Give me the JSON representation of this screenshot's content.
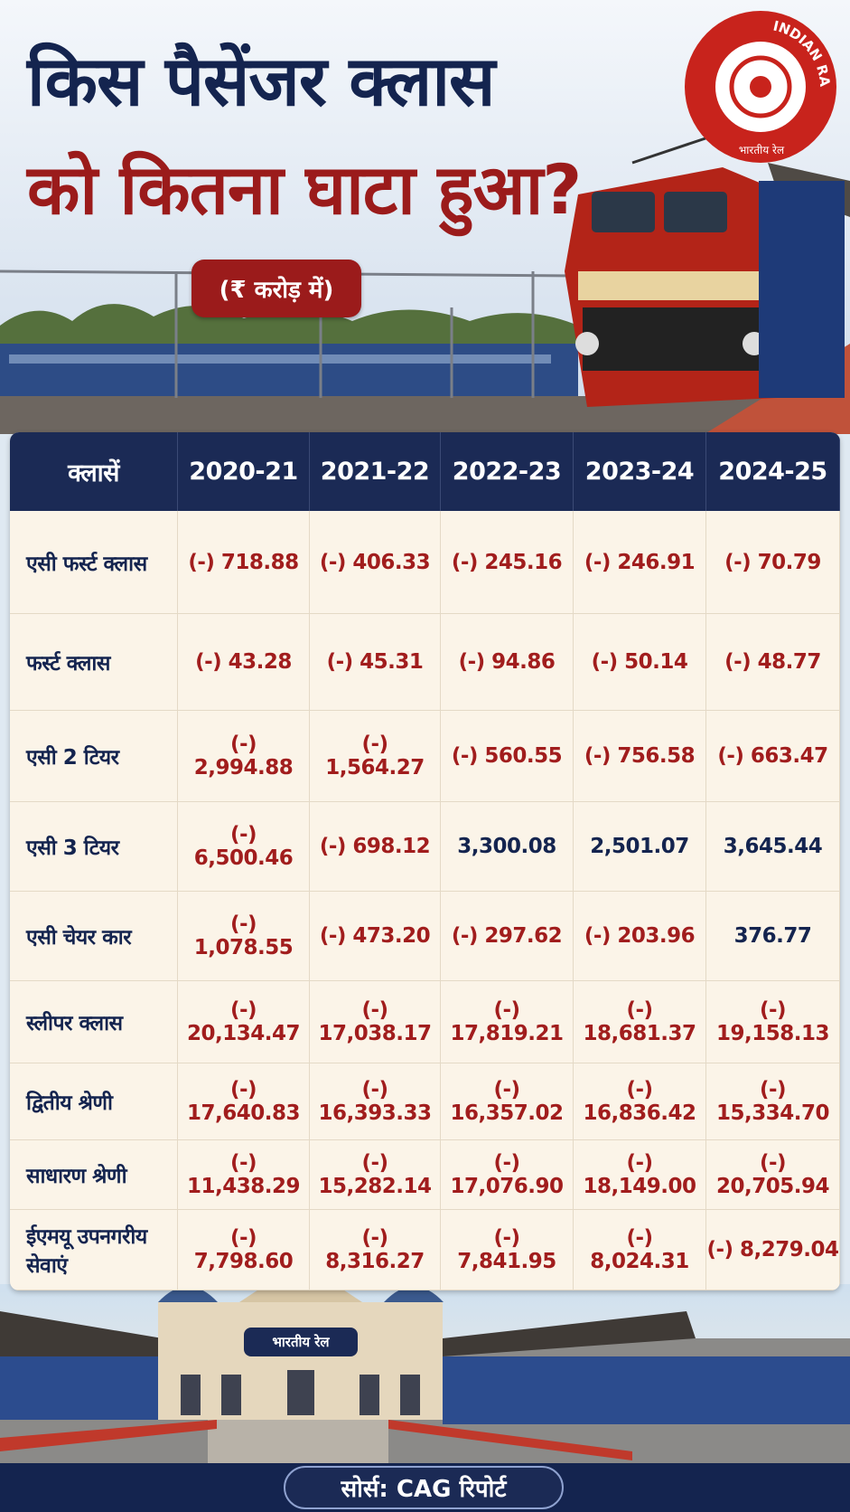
{
  "header": {
    "title_line1": "किस पैसेंजर क्लास",
    "title_line2": "को कितना घाटा हुआ?",
    "unit": "(₹ करोड़ में)"
  },
  "logo": {
    "text_en": "INDIAN RAILWAYS",
    "text_hi": "भारतीय रेल"
  },
  "station_sign": "भारतीय रेल",
  "table": {
    "columns": [
      "क्लासें",
      "2020-21",
      "2021-22",
      "2022-23",
      "2023-24",
      "2024-25"
    ],
    "rows": [
      [
        "एसी फर्स्ट क्लास",
        "(-) 718.88",
        "(-) 406.33",
        "(-) 245.16",
        "(-) 246.91",
        "(-) 70.79"
      ],
      [
        "फर्स्ट क्लास",
        "(-) 43.28",
        "(-) 45.31",
        "(-) 94.86",
        "(-) 50.14",
        "(-) 48.77"
      ],
      [
        "एसी 2 टियर",
        "(-) 2,994.88",
        "(-) 1,564.27",
        "(-) 560.55",
        "(-) 756.58",
        "(-) 663.47"
      ],
      [
        "एसी 3 टियर",
        "(-) 6,500.46",
        "(-) 698.12",
        "3,300.08",
        "2,501.07",
        "3,645.44"
      ],
      [
        "एसी चेयर कार",
        "(-) 1,078.55",
        "(-) 473.20",
        "(-) 297.62",
        "(-) 203.96",
        "376.77"
      ],
      [
        "स्लीपर क्लास",
        "(-) 20,134.47",
        "(-) 17,038.17",
        "(-) 17,819.21",
        "(-) 18,681.37",
        "(-) 19,158.13"
      ],
      [
        "द्वितीय श्रेणी",
        "(-) 17,640.83",
        "(-) 16,393.33",
        "(-) 16,357.02",
        "(-) 16,836.42",
        "(-) 15,334.70"
      ],
      [
        "साधारण श्रेणी",
        "(-) 11,438.29",
        "(-) 15,282.14",
        "(-) 17,076.90",
        "(-) 18,149.00",
        "(-) 20,705.94"
      ],
      [
        "ईएमयू उपनगरीय सेवाएं",
        "(-) 7,798.60",
        "(-) 8,316.27",
        "(-) 7,841.95",
        "(-) 8,024.31",
        "(-) 8,279.04"
      ]
    ]
  },
  "footer": {
    "source": "सोर्स: CAG रिपोर्ट"
  }
}
